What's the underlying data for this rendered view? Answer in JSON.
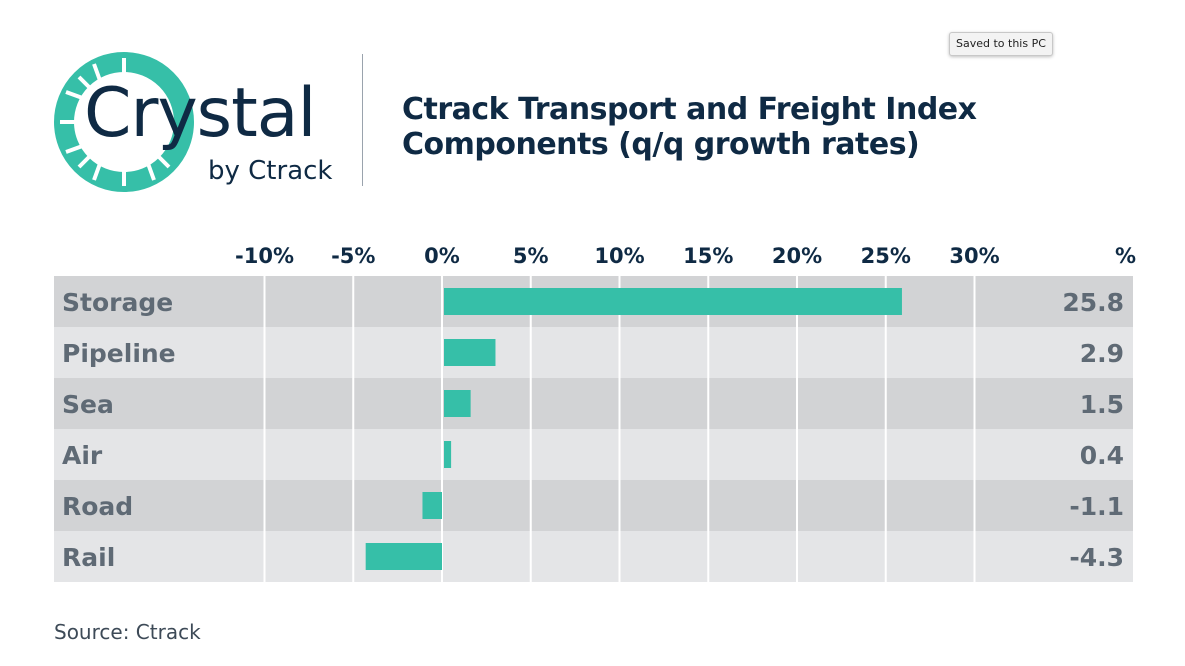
{
  "logo": {
    "word": "Crystal",
    "sub": "by Ctrack"
  },
  "notification": {
    "text": "Saved to this PC"
  },
  "source": "Source: Ctrack",
  "colors": {
    "bar": "#36bfa8",
    "row_dark": "#d2d3d5",
    "row_light": "#e4e5e7",
    "text_dark": "#0f2a44",
    "text_gray": "#5f6a75"
  },
  "chart_data": {
    "type": "bar",
    "orientation": "horizontal",
    "title": "Ctrack Transport and Freight Index Components (q/q growth rates)",
    "categories": [
      "Storage",
      "Pipeline",
      "Sea",
      "Air",
      "Road",
      "Rail"
    ],
    "values": [
      25.8,
      2.9,
      1.5,
      0.4,
      -1.1,
      -4.3
    ],
    "value_labels": [
      "25.8",
      "2.9",
      "1.5",
      "0.4",
      "-1.1",
      "-4.3"
    ],
    "xlim": [
      -12,
      30
    ],
    "ticks": [
      -10,
      -5,
      0,
      5,
      10,
      15,
      20,
      25,
      30
    ],
    "tick_labels": [
      "-10%",
      "-5%",
      "0%",
      "5%",
      "10%",
      "15%",
      "20%",
      "25%",
      "30%"
    ],
    "value_column_header": "%",
    "grid": true,
    "axis_position": "top"
  }
}
